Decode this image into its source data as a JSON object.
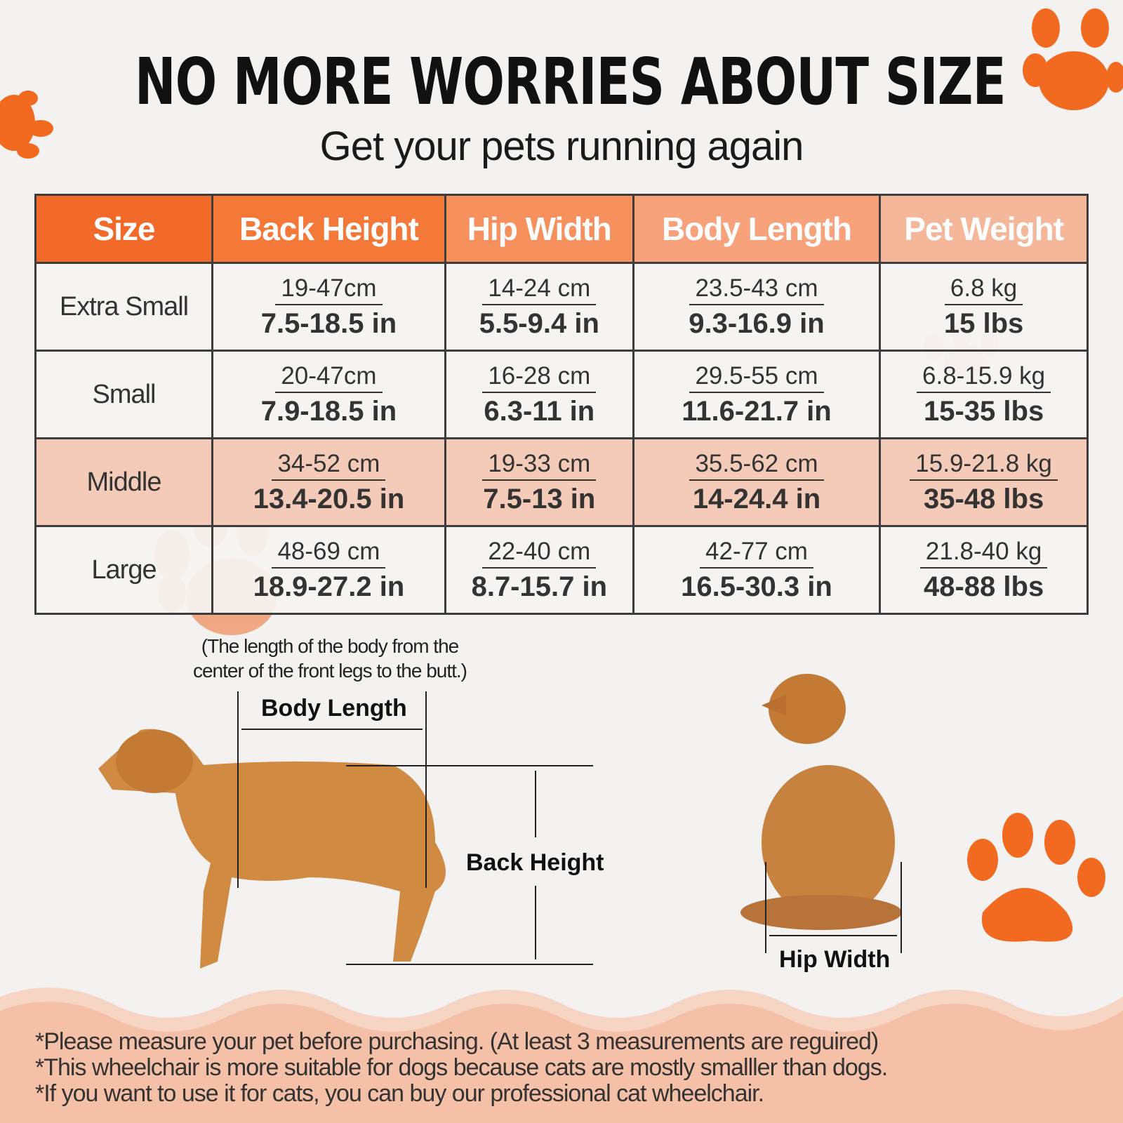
{
  "title": "NO MORE WORRIES ABOUT SIZE",
  "subtitle": "Get your pets running again",
  "colors": {
    "accent": "#f26a2a",
    "highlight_row": "#f4cbb8",
    "footer": "#f4c0a8"
  },
  "table": {
    "headers": [
      "Size",
      "Back Height",
      "Hip Width",
      "Body Length",
      "Pet Weight"
    ],
    "highlighted_row": "Middle",
    "rows": [
      {
        "size": "Extra Small",
        "cells": [
          [
            "19-47cm",
            "7.5-18.5 in"
          ],
          [
            "14-24 cm",
            "5.5-9.4 in"
          ],
          [
            "23.5-43 cm",
            "9.3-16.9 in"
          ],
          [
            "6.8 kg",
            "15 lbs"
          ]
        ]
      },
      {
        "size": "Small",
        "cells": [
          [
            "20-47cm",
            "7.9-18.5 in"
          ],
          [
            "16-28 cm",
            "6.3-11 in"
          ],
          [
            "29.5-55 cm",
            "11.6-21.7 in"
          ],
          [
            "6.8-15.9 kg",
            "15-35 lbs"
          ]
        ]
      },
      {
        "size": "Middle",
        "cells": [
          [
            "34-52 cm",
            "13.4-20.5 in"
          ],
          [
            "19-33 cm",
            "7.5-13 in"
          ],
          [
            "35.5-62 cm",
            "14-24.4 in"
          ],
          [
            "15.9-21.8 kg",
            "35-48 lbs"
          ]
        ]
      },
      {
        "size": "Large",
        "cells": [
          [
            "48-69 cm",
            "18.9-27.2 in"
          ],
          [
            "22-40 cm",
            "8.7-15.7 in"
          ],
          [
            "42-77 cm",
            "16.5-30.3 in"
          ],
          [
            "21.8-40 kg",
            "48-88 lbs"
          ]
        ]
      }
    ]
  },
  "diagram": {
    "note_line1": "(The length of the body from the",
    "note_line2": "center of the front legs to the butt.)",
    "body_length": "Body Length",
    "back_height": "Back Height",
    "hip_width": "Hip Width"
  },
  "footer": [
    "*Please measure your pet before purchasing. (At least 3 measurements are reguired)",
    "*This wheelchair is more suitable for dogs because cats are mostly smalller than dogs.",
    "*If you want to use it for cats, you can buy our professional cat wheelchair."
  ]
}
